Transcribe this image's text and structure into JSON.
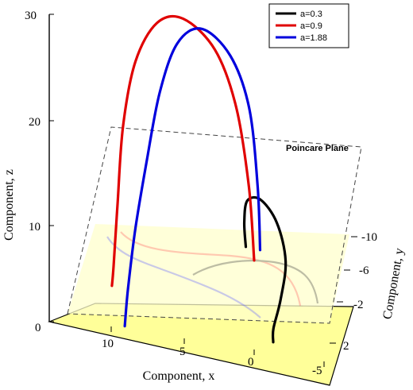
{
  "chart_data": {
    "type": "line",
    "subtype": "3d",
    "title": "",
    "xlabel": "Component, x",
    "ylabel": "Component, y",
    "zlabel": "Component, z",
    "x_ticks": [
      "10",
      "5",
      "0",
      "-5"
    ],
    "y_ticks": [
      "-10",
      "-6",
      "-2",
      "2"
    ],
    "z_ticks": [
      "0",
      "10",
      "20",
      "30"
    ],
    "plane_label": "Poincare Plane",
    "legend_position": "top-right",
    "series": [
      {
        "name": "a=0.3",
        "color": "#000000",
        "points": [
          {
            "x": 0.5,
            "y": 0.2,
            "z": 5.5
          },
          {
            "x": 0.9,
            "y": -0.5,
            "z": 8.5
          },
          {
            "x": 1.1,
            "y": -1.5,
            "z": 11.5
          },
          {
            "x": 1.0,
            "y": -3.5,
            "z": 13.5
          },
          {
            "x": 0.7,
            "y": -5.5,
            "z": 13.2
          },
          {
            "x": 0.8,
            "y": -7.2,
            "z": 11.0
          },
          {
            "x": 1.6,
            "y": -8.3,
            "z": 8.0
          },
          {
            "x": 2.4,
            "y": -9.0,
            "z": 5.5
          },
          {
            "x": 2.5,
            "y": -9.2,
            "z": 4.3
          }
        ]
      },
      {
        "name": "a=0.9",
        "color": "#e00000",
        "points": [
          {
            "x": 0.0,
            "y": 0.0,
            "z": 4.5
          },
          {
            "x": 0.5,
            "y": -0.3,
            "z": 12.0
          },
          {
            "x": 1.6,
            "y": -0.8,
            "z": 20.0
          },
          {
            "x": 3.5,
            "y": -1.8,
            "z": 26.0
          },
          {
            "x": 6.3,
            "y": -3.2,
            "z": 29.5
          },
          {
            "x": 8.8,
            "y": -4.8,
            "z": 29.8
          },
          {
            "x": 10.8,
            "y": -6.0,
            "z": 26.5
          },
          {
            "x": 12.0,
            "y": -6.8,
            "z": 20.5
          },
          {
            "x": 12.6,
            "y": -7.3,
            "z": 13.0
          },
          {
            "x": 13.0,
            "y": -7.6,
            "z": 7.0
          },
          {
            "x": 13.2,
            "y": -7.8,
            "z": 5.2
          }
        ]
      },
      {
        "name": "a=1.88",
        "color": "#0000dd",
        "points": [
          {
            "x": -0.5,
            "y": 0.2,
            "z": 5.5
          },
          {
            "x": -0.2,
            "y": -0.1,
            "z": 12.0
          },
          {
            "x": 0.6,
            "y": -0.6,
            "z": 20.0
          },
          {
            "x": 2.3,
            "y": -1.5,
            "z": 25.5
          },
          {
            "x": 4.8,
            "y": -2.7,
            "z": 28.5
          },
          {
            "x": 7.0,
            "y": -3.9,
            "z": 27.5
          },
          {
            "x": 8.6,
            "y": -4.8,
            "z": 23.0
          },
          {
            "x": 9.8,
            "y": -5.5,
            "z": 16.5
          },
          {
            "x": 10.8,
            "y": -6.0,
            "z": 10.0
          },
          {
            "x": 11.5,
            "y": -6.4,
            "z": 4.0
          },
          {
            "x": 11.8,
            "y": -6.6,
            "z": 0.5
          }
        ]
      }
    ]
  }
}
